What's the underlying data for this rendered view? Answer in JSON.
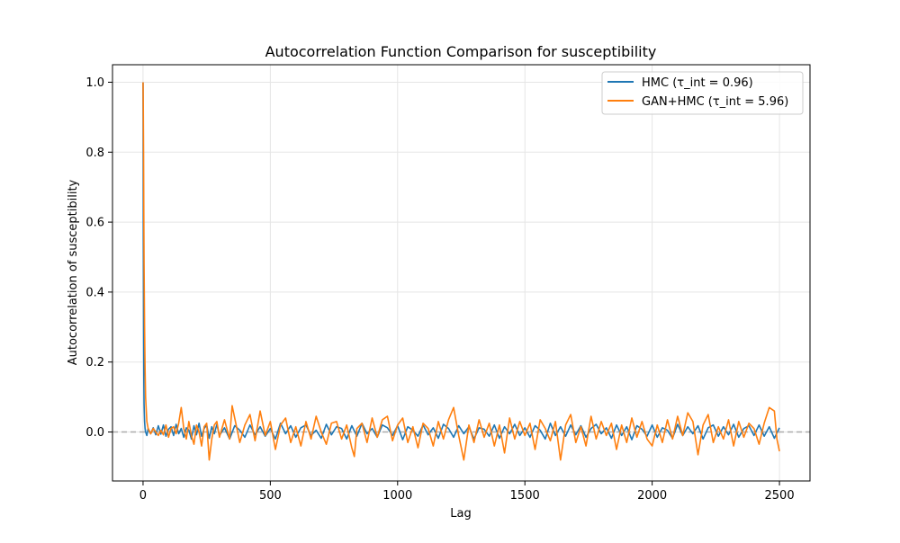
{
  "chart_data": {
    "type": "line",
    "title": "Autocorrelation Function Comparison for susceptibility",
    "xlabel": "Lag",
    "ylabel": "Autocorrelation of susceptibility",
    "xlim": [
      -120,
      2620
    ],
    "ylim": [
      -0.14,
      1.05
    ],
    "x_ticks": [
      0,
      500,
      1000,
      1500,
      2000,
      2500
    ],
    "x_tick_labels": [
      "0",
      "500",
      "1000",
      "1500",
      "2000",
      "2500"
    ],
    "y_ticks": [
      0.0,
      0.2,
      0.4,
      0.6,
      0.8,
      1.0
    ],
    "y_tick_labels": [
      "0.0",
      "0.2",
      "0.4",
      "0.6",
      "0.8",
      "1.0"
    ],
    "grid": true,
    "legend_position": "top-right",
    "reference_line": {
      "y": 0.0,
      "style": "dashed",
      "color": "#aaaaaa"
    },
    "series": [
      {
        "name": "HMC (τ_int = 0.96)",
        "color": "#1f77b4",
        "x": [
          0,
          1,
          2,
          3,
          4,
          6,
          8,
          10,
          15,
          20,
          30,
          40,
          50,
          60,
          70,
          80,
          90,
          100,
          110,
          120,
          130,
          140,
          150,
          160,
          170,
          180,
          190,
          200,
          210,
          220,
          230,
          240,
          250,
          260,
          270,
          280,
          290,
          300,
          320,
          340,
          360,
          380,
          400,
          420,
          440,
          460,
          480,
          500,
          520,
          540,
          560,
          580,
          600,
          620,
          640,
          660,
          680,
          700,
          720,
          740,
          760,
          780,
          800,
          820,
          840,
          860,
          880,
          900,
          920,
          940,
          960,
          980,
          1000,
          1020,
          1040,
          1060,
          1080,
          1100,
          1120,
          1140,
          1160,
          1180,
          1200,
          1220,
          1240,
          1260,
          1280,
          1300,
          1320,
          1340,
          1360,
          1380,
          1400,
          1420,
          1440,
          1460,
          1480,
          1500,
          1520,
          1540,
          1560,
          1580,
          1600,
          1620,
          1640,
          1660,
          1680,
          1700,
          1720,
          1740,
          1760,
          1780,
          1800,
          1820,
          1840,
          1860,
          1880,
          1900,
          1920,
          1940,
          1960,
          1980,
          2000,
          2020,
          2040,
          2060,
          2080,
          2100,
          2120,
          2140,
          2160,
          2180,
          2200,
          2220,
          2240,
          2260,
          2280,
          2300,
          2320,
          2340,
          2360,
          2380,
          2400,
          2420,
          2440,
          2460,
          2480,
          2500
        ],
        "y": [
          1.0,
          0.55,
          0.3,
          0.15,
          0.08,
          0.03,
          0.01,
          0.0,
          -0.01,
          0.01,
          -0.005,
          0.012,
          -0.008,
          0.018,
          -0.006,
          0.02,
          -0.012,
          0.008,
          0.015,
          -0.01,
          0.022,
          -0.005,
          0.01,
          -0.015,
          0.012,
          0.005,
          -0.02,
          0.018,
          -0.008,
          0.025,
          -0.012,
          0.01,
          0.02,
          -0.018,
          0.015,
          -0.005,
          0.022,
          -0.01,
          0.012,
          -0.02,
          0.018,
          0.005,
          -0.015,
          0.02,
          -0.008,
          0.015,
          -0.012,
          0.01,
          -0.02,
          0.025,
          -0.005,
          0.018,
          -0.015,
          0.012,
          0.02,
          -0.01,
          0.005,
          -0.018,
          0.022,
          -0.008,
          0.015,
          0.01,
          -0.02,
          0.018,
          -0.012,
          0.025,
          -0.005,
          0.01,
          -0.015,
          0.02,
          0.012,
          -0.01,
          0.018,
          -0.022,
          0.015,
          0.005,
          -0.012,
          0.02,
          -0.008,
          0.012,
          -0.018,
          0.022,
          0.01,
          -0.015,
          0.018,
          -0.005,
          0.015,
          -0.02,
          0.012,
          0.008,
          -0.012,
          0.02,
          -0.018,
          0.015,
          -0.005,
          0.022,
          -0.01,
          0.012,
          -0.015,
          0.018,
          0.005,
          -0.02,
          0.025,
          -0.01,
          0.015,
          -0.012,
          0.02,
          -0.008,
          0.018,
          -0.015,
          0.01,
          0.022,
          -0.005,
          0.012,
          -0.018,
          0.02,
          -0.01,
          0.015,
          -0.022,
          0.018,
          0.008,
          -0.012,
          0.02,
          -0.015,
          0.012,
          0.005,
          -0.018,
          0.022,
          -0.01,
          0.015,
          -0.005,
          0.018,
          -0.02,
          0.012,
          0.02,
          -0.012,
          0.015,
          -0.008,
          0.022,
          -0.015,
          0.01,
          0.018,
          -0.01,
          0.02,
          -0.012,
          0.015,
          -0.018,
          0.012
        ]
      },
      {
        "name": "GAN+HMC (τ_int = 5.96)",
        "color": "#ff7f0e",
        "x": [
          0,
          1,
          2,
          3,
          4,
          6,
          8,
          10,
          15,
          20,
          30,
          40,
          50,
          60,
          70,
          80,
          90,
          100,
          110,
          120,
          130,
          140,
          150,
          160,
          170,
          180,
          190,
          200,
          210,
          220,
          230,
          240,
          250,
          260,
          270,
          280,
          290,
          300,
          320,
          340,
          350,
          360,
          380,
          400,
          420,
          440,
          460,
          480,
          500,
          520,
          540,
          560,
          580,
          600,
          620,
          640,
          660,
          680,
          700,
          720,
          740,
          760,
          780,
          800,
          820,
          830,
          840,
          860,
          880,
          900,
          920,
          940,
          960,
          980,
          1000,
          1020,
          1040,
          1060,
          1080,
          1100,
          1120,
          1140,
          1160,
          1180,
          1200,
          1220,
          1240,
          1260,
          1280,
          1300,
          1320,
          1340,
          1360,
          1380,
          1400,
          1420,
          1440,
          1460,
          1480,
          1500,
          1520,
          1540,
          1560,
          1580,
          1600,
          1620,
          1640,
          1660,
          1680,
          1700,
          1720,
          1740,
          1760,
          1780,
          1800,
          1820,
          1840,
          1860,
          1880,
          1900,
          1920,
          1940,
          1960,
          1980,
          2000,
          2020,
          2040,
          2060,
          2080,
          2100,
          2120,
          2140,
          2160,
          2180,
          2200,
          2220,
          2240,
          2260,
          2280,
          2300,
          2320,
          2340,
          2360,
          2380,
          2400,
          2420,
          2440,
          2460,
          2480,
          2490,
          2500
        ],
        "y": [
          1.0,
          0.92,
          0.8,
          0.62,
          0.48,
          0.3,
          0.18,
          0.1,
          0.03,
          0.01,
          -0.005,
          0.01,
          0.0,
          -0.01,
          0.005,
          -0.008,
          0.02,
          -0.015,
          0.01,
          0.015,
          -0.005,
          0.025,
          0.07,
          0.01,
          -0.02,
          0.03,
          -0.01,
          -0.035,
          0.02,
          0.0,
          -0.04,
          0.015,
          0.025,
          -0.08,
          -0.02,
          0.02,
          0.03,
          -0.015,
          0.035,
          -0.02,
          0.075,
          0.04,
          -0.03,
          0.02,
          0.05,
          -0.025,
          0.06,
          -0.01,
          0.03,
          -0.05,
          0.02,
          0.04,
          -0.03,
          0.015,
          -0.04,
          0.03,
          -0.02,
          0.045,
          0.0,
          -0.035,
          0.025,
          0.03,
          -0.02,
          0.02,
          -0.045,
          -0.07,
          0.01,
          0.025,
          -0.03,
          0.04,
          -0.015,
          0.035,
          0.045,
          -0.025,
          0.02,
          0.04,
          -0.03,
          0.015,
          -0.045,
          0.025,
          0.01,
          -0.04,
          0.03,
          -0.02,
          0.035,
          0.07,
          -0.01,
          -0.08,
          0.02,
          -0.03,
          0.035,
          -0.015,
          0.025,
          -0.04,
          0.02,
          -0.06,
          0.04,
          -0.02,
          0.03,
          -0.01,
          0.025,
          -0.05,
          0.035,
          0.01,
          -0.025,
          0.03,
          -0.08,
          0.02,
          0.05,
          -0.03,
          0.015,
          -0.04,
          0.045,
          -0.02,
          0.03,
          -0.01,
          0.025,
          -0.05,
          0.02,
          -0.03,
          0.04,
          -0.015,
          0.03,
          -0.02,
          -0.04,
          0.02,
          -0.03,
          0.035,
          -0.02,
          0.045,
          -0.01,
          0.055,
          0.03,
          -0.065,
          0.02,
          0.05,
          -0.03,
          0.015,
          -0.02,
          0.035,
          -0.04,
          0.03,
          -0.015,
          0.025,
          0.01,
          -0.035,
          0.025,
          0.07,
          0.06,
          -0.02,
          -0.055
        ]
      }
    ]
  }
}
